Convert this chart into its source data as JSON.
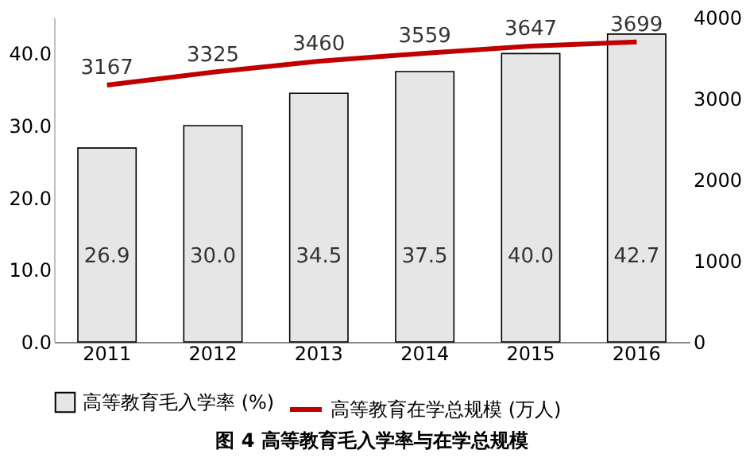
{
  "chart_data": {
    "type": "bar",
    "title": "图 4   高等教育毛入学率与在学总规模",
    "categories": [
      "2011",
      "2012",
      "2013",
      "2014",
      "2015",
      "2016"
    ],
    "series": [
      {
        "name": "高等教育毛入学率 (%)",
        "color": "#e6e6e6",
        "values": [
          26.9,
          30.0,
          34.5,
          37.5,
          40.0,
          42.7
        ],
        "value_labels": [
          "26.9",
          "30.0",
          "34.5",
          "37.5",
          "40.0",
          "42.7"
        ]
      },
      {
        "name": "高等教育在学总规模 (万人)",
        "type": "line",
        "axis": "y2",
        "color": "#c00000",
        "values": [
          3167,
          3325,
          3460,
          3559,
          3647,
          3699
        ]
      }
    ],
    "ylim": [
      0,
      45
    ],
    "yticks": [
      {
        "value": 0,
        "label": "0.0"
      },
      {
        "value": 10,
        "label": "10.0"
      },
      {
        "value": 20,
        "label": "20.0"
      },
      {
        "value": 30,
        "label": "30.0"
      },
      {
        "value": 40,
        "label": "40.0"
      }
    ],
    "y2lim": [
      0,
      4000
    ],
    "y2ticks": [
      0,
      1000,
      2000,
      3000,
      4000
    ],
    "data_labels": true,
    "legend": "bottom",
    "grid": false,
    "marker": "none"
  }
}
